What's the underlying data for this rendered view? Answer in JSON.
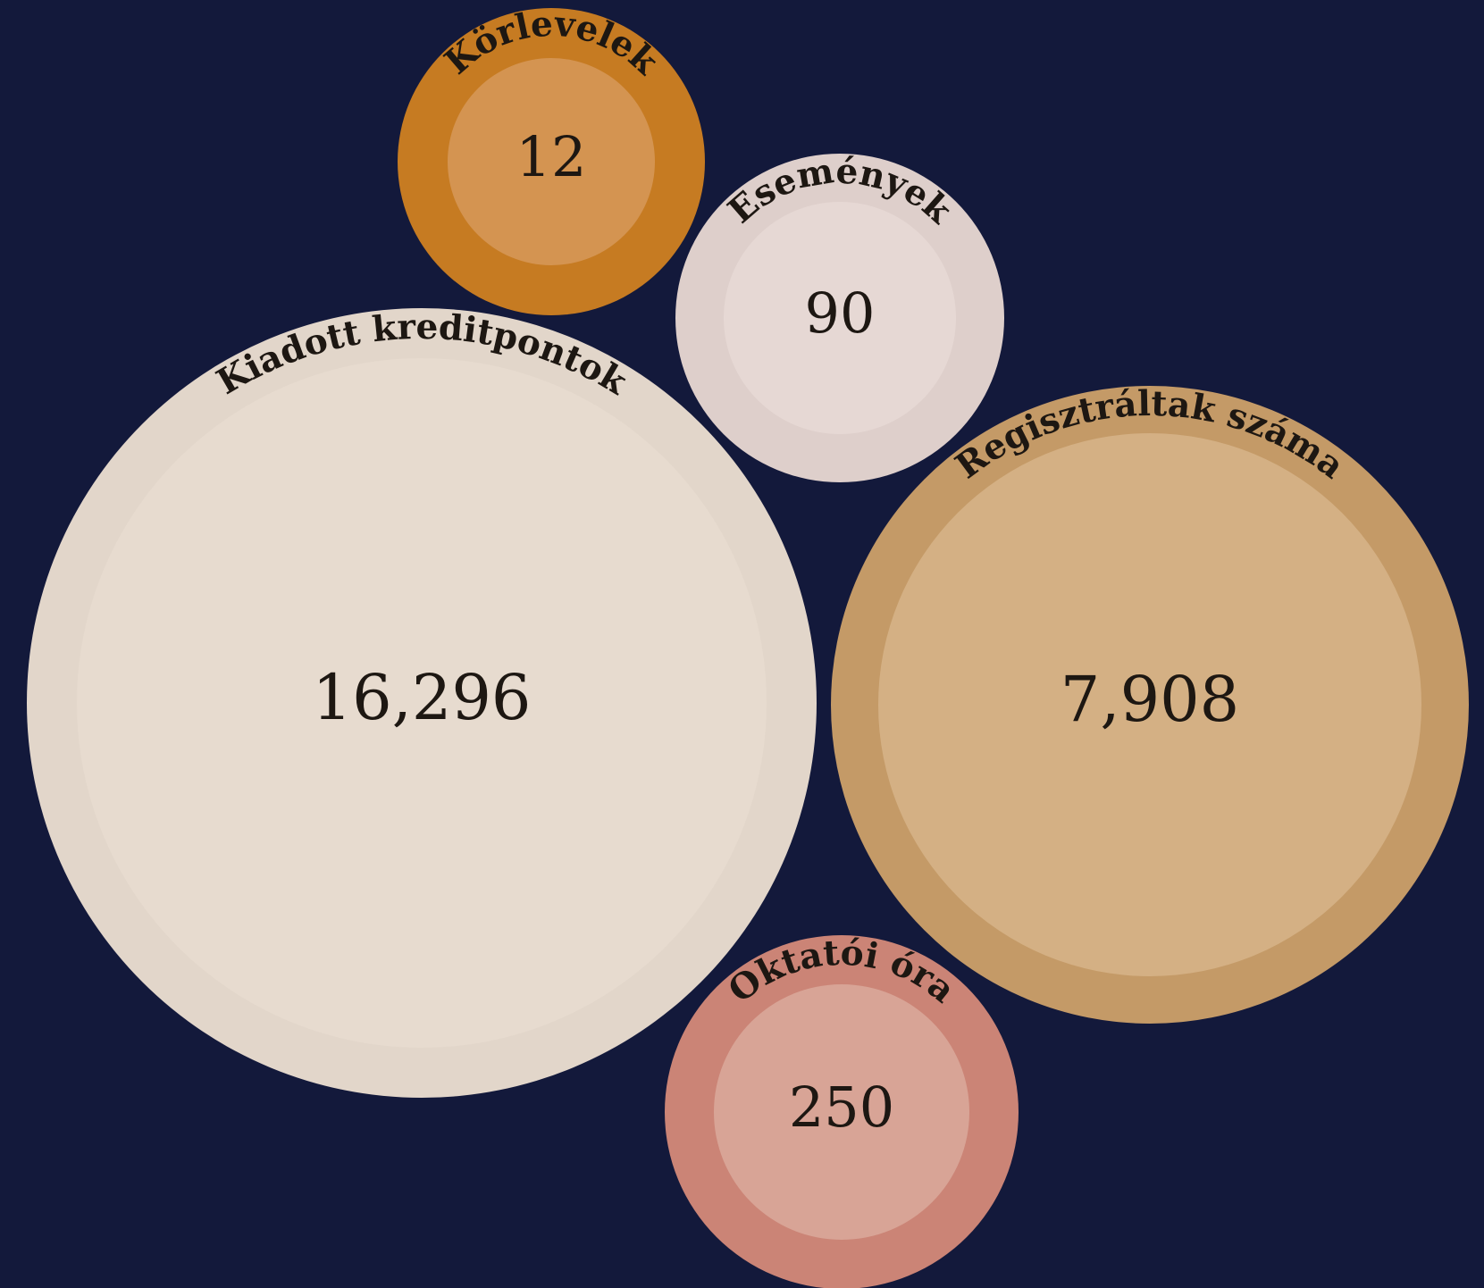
{
  "chart_data": {
    "type": "bubble",
    "background_color": "#13193b",
    "items": [
      {
        "label": "Körlevelek",
        "value": 12,
        "value_label": "12",
        "outer_color": "#c67b22",
        "inner_color": "#d49451"
      },
      {
        "label": "Események",
        "value": 90,
        "value_label": "90",
        "outer_color": "#decfcb",
        "inner_color": "#e6d8d4"
      },
      {
        "label": "Kiadott kreditpontok",
        "value": 16296,
        "value_label": "16,296",
        "outer_color": "#e2d6ca",
        "inner_color": "#e7dbcf"
      },
      {
        "label": "Regisztráltak száma",
        "value": 7908,
        "value_label": "7,908",
        "outer_color": "#c49a67",
        "inner_color": "#d4b084"
      },
      {
        "label": "Oktatói óra",
        "value": 250,
        "value_label": "250",
        "outer_color": "#cb8476",
        "inner_color": "#d8a496"
      }
    ]
  }
}
